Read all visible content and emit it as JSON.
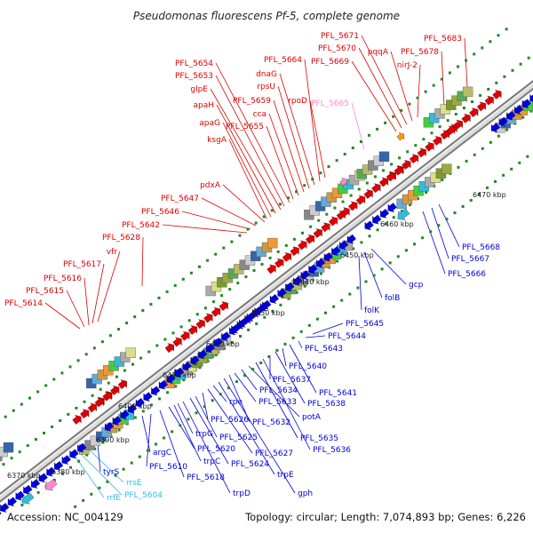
{
  "title": "Pseudomonas fluorescens Pf-5, complete genome",
  "footer": {
    "accession": "Accession: NC_004129",
    "topology": "Topology: circular; Length: 7,074,893 bp; Genes: 6,226"
  },
  "colors": {
    "forward": "#e00000",
    "reverse": "#0000dd",
    "rna": "#33bbdd",
    "pseudo": "#ff88cc",
    "backbone": "#9a9a9a",
    "ticks": "#228822"
  },
  "scale_labels": [
    "6370 kbp",
    "6380 kbp",
    "6390 kbp",
    "6400 kbp",
    "6410 kbp",
    "6420 kbp",
    "6430 kbp",
    "6440 kbp",
    "6450 kbp",
    "6460 kbp",
    "6470 kbp"
  ],
  "forward_labels": [
    "PFL_5614",
    "PFL_5615",
    "PFL_5616",
    "PFL_5617",
    "PFL_5628",
    "vfr",
    "PFL_5642",
    "PFL_5646",
    "PFL_5647",
    "pdxA",
    "ksgA",
    "apaG",
    "apaH",
    "glpE",
    "PFL_5653",
    "PFL_5654",
    "PFL_5655",
    "cca",
    "PFL_5659",
    "rpsU",
    "dnaG",
    "PFL_5664",
    "rpoD",
    "PFL_5665",
    "PFL_5669",
    "PFL_5670",
    "PFL_5671",
    "pqqA",
    "nirJ-2",
    "PFL_5678",
    "PFL_5683"
  ],
  "reverse_labels": [
    "rrfE",
    "PFL_5604",
    "rrsE",
    "tyrS",
    "argC",
    "PFL_5610",
    "PFL_5618",
    "PFL_5620",
    "trpC",
    "trpG",
    "trpD",
    "PFL_5624",
    "PFL_5625",
    "PFL_5626",
    "PFL_5627",
    "rpe",
    "trpE",
    "gph",
    "PFL_5632",
    "PFL_5633",
    "PFL_5634",
    "potA",
    "PFL_5635",
    "PFL_5636",
    "PFL_5637",
    "PFL_5638",
    "PFL_5640",
    "PFL_5641",
    "PFL_5643",
    "PFL_5644",
    "PFL_5645",
    "folK",
    "folB",
    "gcp",
    "PFL_5666",
    "PFL_5667",
    "PFL_5668"
  ]
}
